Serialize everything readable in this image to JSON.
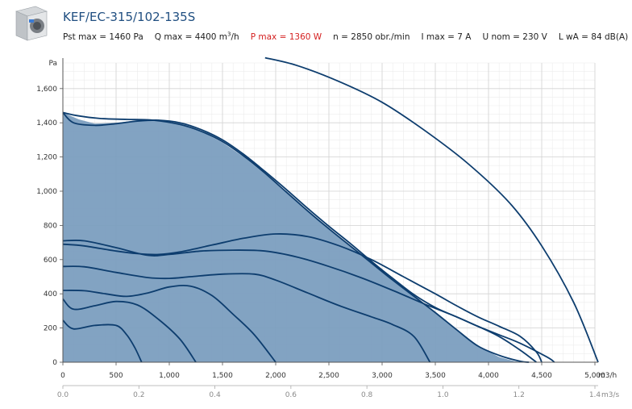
{
  "header": {
    "title": "KEF/EC-315/102-135S",
    "pst_max": "Pst max = 1460 Pa",
    "q_max_prefix": "Q max = 4400 m",
    "q_max_sup": "3",
    "q_max_suffix": "/h",
    "p_max": "P max = 1360 W",
    "speed": "n = 2850 obr./min",
    "i_max": "I max = 7 A",
    "u_nom": "U nom = 230 V",
    "lwa": "L wA = 84 dB(A)",
    "product_image": "fan-box-image",
    "title_color": "#1f4e80",
    "power_color": "#d42020"
  },
  "chart_data": {
    "type": "line",
    "ylabel": "Pa",
    "xlabel": "m3/h",
    "xlabel2": "m3/s",
    "xlim": [
      0,
      5000
    ],
    "ylim": [
      0,
      1750
    ],
    "xlim2": [
      0,
      1.4
    ],
    "x_ticks": [
      "0",
      "500",
      "1,000",
      "1,500",
      "2,000",
      "2,500",
      "3,000",
      "3,500",
      "4,000",
      "4,500",
      "5,000"
    ],
    "x_tick_values": [
      0,
      500,
      1000,
      1500,
      2000,
      2500,
      3000,
      3500,
      4000,
      4500,
      5000
    ],
    "x2_ticks": [
      "0.0",
      "0.2",
      "0.4",
      "0.6",
      "0.8",
      "1.0",
      "1.2",
      "1.4"
    ],
    "x2_tick_values": [
      0,
      0.2,
      0.4,
      0.6,
      0.8,
      1.0,
      1.2,
      1.4
    ],
    "y_ticks": [
      "0",
      "200",
      "400",
      "600",
      "800",
      "1,000",
      "1,200",
      "1,400",
      "1,600"
    ],
    "y_tick_values": [
      0,
      200,
      400,
      600,
      800,
      1000,
      1200,
      1400,
      1600
    ],
    "grid": true,
    "area_color": "#7b9ebf",
    "line_color": "#0d3d6e",
    "working_area": {
      "x": [
        0,
        150,
        300,
        500,
        700,
        900,
        1100,
        1300,
        1500,
        1700,
        1900,
        2100,
        2300,
        2500,
        2700,
        2900,
        3100,
        3300,
        3500,
        3700,
        3900,
        4100,
        4250,
        4350,
        4200,
        4000,
        3800,
        3600,
        3400,
        3200,
        3000,
        2800,
        2600,
        2400,
        2200,
        2000,
        1800,
        1600,
        1400,
        1200,
        1000,
        800,
        600,
        400,
        200,
        0
      ],
      "y": [
        1460,
        1420,
        1395,
        1400,
        1415,
        1415,
        1395,
        1350,
        1285,
        1200,
        1100,
        995,
        890,
        785,
        685,
        585,
        485,
        390,
        295,
        190,
        95,
        30,
        5,
        0,
        0,
        0,
        0,
        0,
        0,
        0,
        0,
        0,
        0,
        0,
        0,
        0,
        0,
        0,
        0,
        0,
        0,
        0,
        0,
        0,
        0,
        0
      ]
    },
    "series": [
      {
        "x": [
          0,
          100,
          300,
          500,
          700,
          900,
          1100,
          1300,
          1500,
          1700,
          1900,
          2100,
          2300,
          2500,
          2700,
          2900,
          3100,
          3300,
          3500,
          3700,
          3900,
          4100,
          4300,
          4450
        ],
        "y": [
          1460,
          1400,
          1385,
          1395,
          1410,
          1415,
          1400,
          1360,
          1300,
          1215,
          1115,
          1010,
          900,
          795,
          695,
          590,
          490,
          395,
          320,
          265,
          210,
          150,
          70,
          0
        ]
      },
      {
        "x": [
          0,
          150,
          350,
          600,
          850,
          1100,
          1300,
          1500,
          1700,
          1900,
          2100,
          2300,
          2500,
          2700,
          2900,
          3100,
          3300,
          3500,
          3700,
          3900,
          4100,
          4300,
          4380
        ],
        "y": [
          1460,
          1440,
          1425,
          1420,
          1415,
          1390,
          1350,
          1290,
          1205,
          1105,
          995,
          885,
          780,
          680,
          580,
          480,
          385,
          290,
          190,
          95,
          40,
          5,
          0
        ]
      },
      {
        "x": [
          0,
          200,
          500,
          700,
          900,
          1100,
          1400,
          1700,
          2000,
          2300,
          2600,
          2900,
          3200,
          3500,
          3700,
          3900,
          4100,
          4300,
          4450,
          4500
        ],
        "y": [
          690,
          680,
          650,
          635,
          630,
          645,
          685,
          725,
          750,
          735,
          680,
          600,
          500,
          400,
          330,
          265,
          210,
          150,
          60,
          0
        ]
      },
      {
        "x": [
          0,
          200,
          500,
          800,
          1000,
          1300,
          1600,
          1900,
          2200,
          2500,
          2800,
          3100,
          3400,
          3700,
          3900,
          4100,
          4300,
          4550,
          4620
        ],
        "y": [
          710,
          710,
          670,
          625,
          630,
          650,
          655,
          650,
          615,
          560,
          495,
          420,
          340,
          265,
          210,
          160,
          110,
          30,
          0
        ]
      },
      {
        "x": [
          0,
          200,
          500,
          800,
          1000,
          1200,
          1500,
          1800,
          2000,
          2300,
          2600,
          2900,
          3100,
          3300,
          3450
        ],
        "y": [
          560,
          558,
          525,
          495,
          490,
          500,
          515,
          515,
          480,
          405,
          330,
          265,
          220,
          150,
          0
        ]
      },
      {
        "x": [
          0,
          200,
          400,
          600,
          800,
          1000,
          1200,
          1400,
          1600,
          1800,
          2000
        ],
        "y": [
          420,
          418,
          400,
          385,
          405,
          440,
          445,
          390,
          280,
          160,
          0
        ]
      },
      {
        "x": [
          0,
          100,
          300,
          500,
          700,
          900,
          1100,
          1250
        ],
        "y": [
          370,
          310,
          330,
          355,
          335,
          250,
          135,
          0
        ]
      },
      {
        "x": [
          0,
          100,
          300,
          500,
          600,
          680,
          740
        ],
        "y": [
          245,
          195,
          215,
          215,
          160,
          80,
          0
        ]
      },
      {
        "x": [
          1900,
          2200,
          2600,
          3000,
          3400,
          3800,
          4200,
          4500,
          4800,
          5030
        ],
        "y": [
          1780,
          1735,
          1640,
          1520,
          1355,
          1165,
          930,
          680,
          350,
          0
        ]
      }
    ]
  }
}
